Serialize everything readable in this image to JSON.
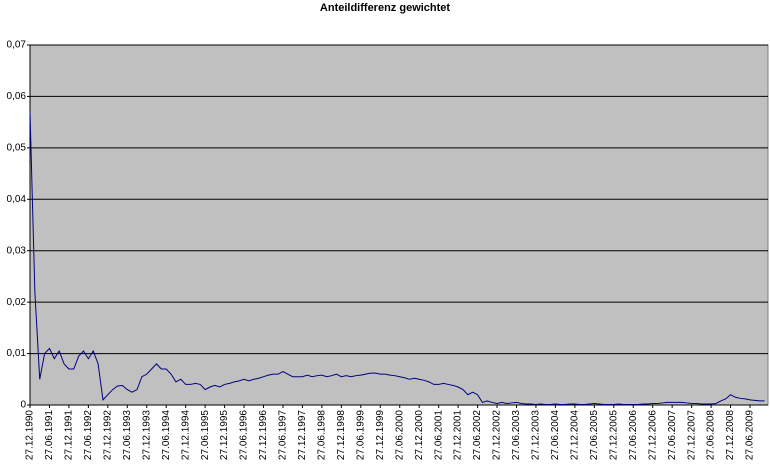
{
  "chart_data": {
    "type": "line",
    "title": "Anteildifferenz gewichtet",
    "categories": [
      "27.12.1990",
      null,
      null,
      null,
      "27.06.1991",
      null,
      null,
      null,
      "27.12.1991",
      null,
      null,
      null,
      "27.06.1992",
      null,
      null,
      null,
      "27.12.1992",
      null,
      null,
      null,
      "27.06.1993",
      null,
      null,
      null,
      "27.12.1993",
      null,
      null,
      null,
      "27.06.1994",
      null,
      null,
      null,
      "27.12.1994",
      null,
      null,
      null,
      "27.06.1995",
      null,
      null,
      null,
      "27.12.1995",
      null,
      null,
      null,
      "27.06.1996",
      null,
      null,
      null,
      "27.12.1996",
      null,
      null,
      null,
      "27.06.1997",
      null,
      null,
      null,
      "27.12.1997",
      null,
      null,
      null,
      "27.06.1998",
      null,
      null,
      null,
      "27.12.1998",
      null,
      null,
      null,
      "27.06.1999",
      null,
      null,
      null,
      "27.12.1999",
      null,
      null,
      null,
      "27.06.2000",
      null,
      null,
      null,
      "27.12.2000",
      null,
      null,
      null,
      "27.06.2001",
      null,
      null,
      null,
      "27.12.2001",
      null,
      null,
      null,
      "27.06.2002",
      null,
      null,
      null,
      "27.12.2002",
      null,
      null,
      null,
      "27.06.2003",
      null,
      null,
      null,
      "27.12.2003",
      null,
      null,
      null,
      "27.06.2004",
      null,
      null,
      null,
      "27.12.2004",
      null,
      null,
      null,
      "27.06.2005",
      null,
      null,
      null,
      "27.12.2005",
      null,
      null,
      null,
      "27.06.2006",
      null,
      null,
      null,
      "27.12.2006",
      null,
      null,
      null,
      "27.06.2007",
      null,
      null,
      null,
      "27.12.2007",
      null,
      null,
      null,
      "27.06.2008",
      null,
      null,
      null,
      "27.12.2008",
      null,
      null,
      null,
      "27.06.2009",
      null,
      null,
      null
    ],
    "values": [
      0.057,
      0.022,
      0.005,
      0.01,
      0.011,
      0.009,
      0.0105,
      0.008,
      0.007,
      0.007,
      0.0095,
      0.0105,
      0.009,
      0.0105,
      0.008,
      0.001,
      0.002,
      0.003,
      0.0037,
      0.0038,
      0.003,
      0.0025,
      0.003,
      0.0055,
      0.006,
      0.007,
      0.008,
      0.007,
      0.007,
      0.006,
      0.0045,
      0.005,
      0.004,
      0.004,
      0.0042,
      0.004,
      0.003,
      0.0035,
      0.0038,
      0.0035,
      0.004,
      0.0042,
      0.0045,
      0.0047,
      0.005,
      0.0047,
      0.005,
      0.0052,
      0.0055,
      0.0058,
      0.006,
      0.006,
      0.0065,
      0.006,
      0.0055,
      0.0055,
      0.0055,
      0.0058,
      0.0055,
      0.0057,
      0.0058,
      0.0055,
      0.0057,
      0.006,
      0.0055,
      0.0057,
      0.0055,
      0.0057,
      0.0058,
      0.006,
      0.0062,
      0.0062,
      0.006,
      0.006,
      0.0058,
      0.0057,
      0.0055,
      0.0053,
      0.005,
      0.0052,
      0.005,
      0.0048,
      0.0045,
      0.004,
      0.004,
      0.0042,
      0.004,
      0.0038,
      0.0035,
      0.003,
      0.002,
      0.0025,
      0.002,
      0.0005,
      0.0008,
      0.0005,
      0.0003,
      0.0005,
      0.0003,
      0.0004,
      0.0005,
      0.0003,
      0.0002,
      0.0002,
      0.0001,
      0.0002,
      0.0001,
      0.0001,
      0.0002,
      0.0001,
      0.0001,
      0.0002,
      0.0002,
      0.0001,
      0.0001,
      0.0002,
      0.0003,
      0.0002,
      0.0001,
      0.0001,
      0.0001,
      0.0002,
      0.0001,
      0.0001,
      0.0001,
      0.0001,
      0.0002,
      0.0002,
      0.0003,
      0.0003,
      0.0004,
      0.0005,
      0.0005,
      0.0005,
      0.0005,
      0.0004,
      0.0003,
      0.0003,
      0.0002,
      0.0002,
      0.0002,
      0.0003,
      0.0008,
      0.0012,
      0.002,
      0.0015,
      0.0013,
      0.0012,
      0.001,
      0.0009,
      0.0008,
      0.0008
    ],
    "color": "#000080",
    "background": "#c0c0c0",
    "ylim": [
      0,
      0.07
    ],
    "yticks": [
      0,
      {
        "value": 0.01,
        "label": "0,01"
      },
      {
        "value": 0.02,
        "label": "0,02"
      },
      {
        "value": 0.03,
        "label": "0,03"
      },
      {
        "value": 0.04,
        "label": "0,04"
      },
      {
        "value": 0.05,
        "label": "0,05"
      },
      {
        "value": 0.06,
        "label": "0,06"
      },
      {
        "value": 0.07,
        "label": "0,07"
      }
    ],
    "grid": true
  }
}
